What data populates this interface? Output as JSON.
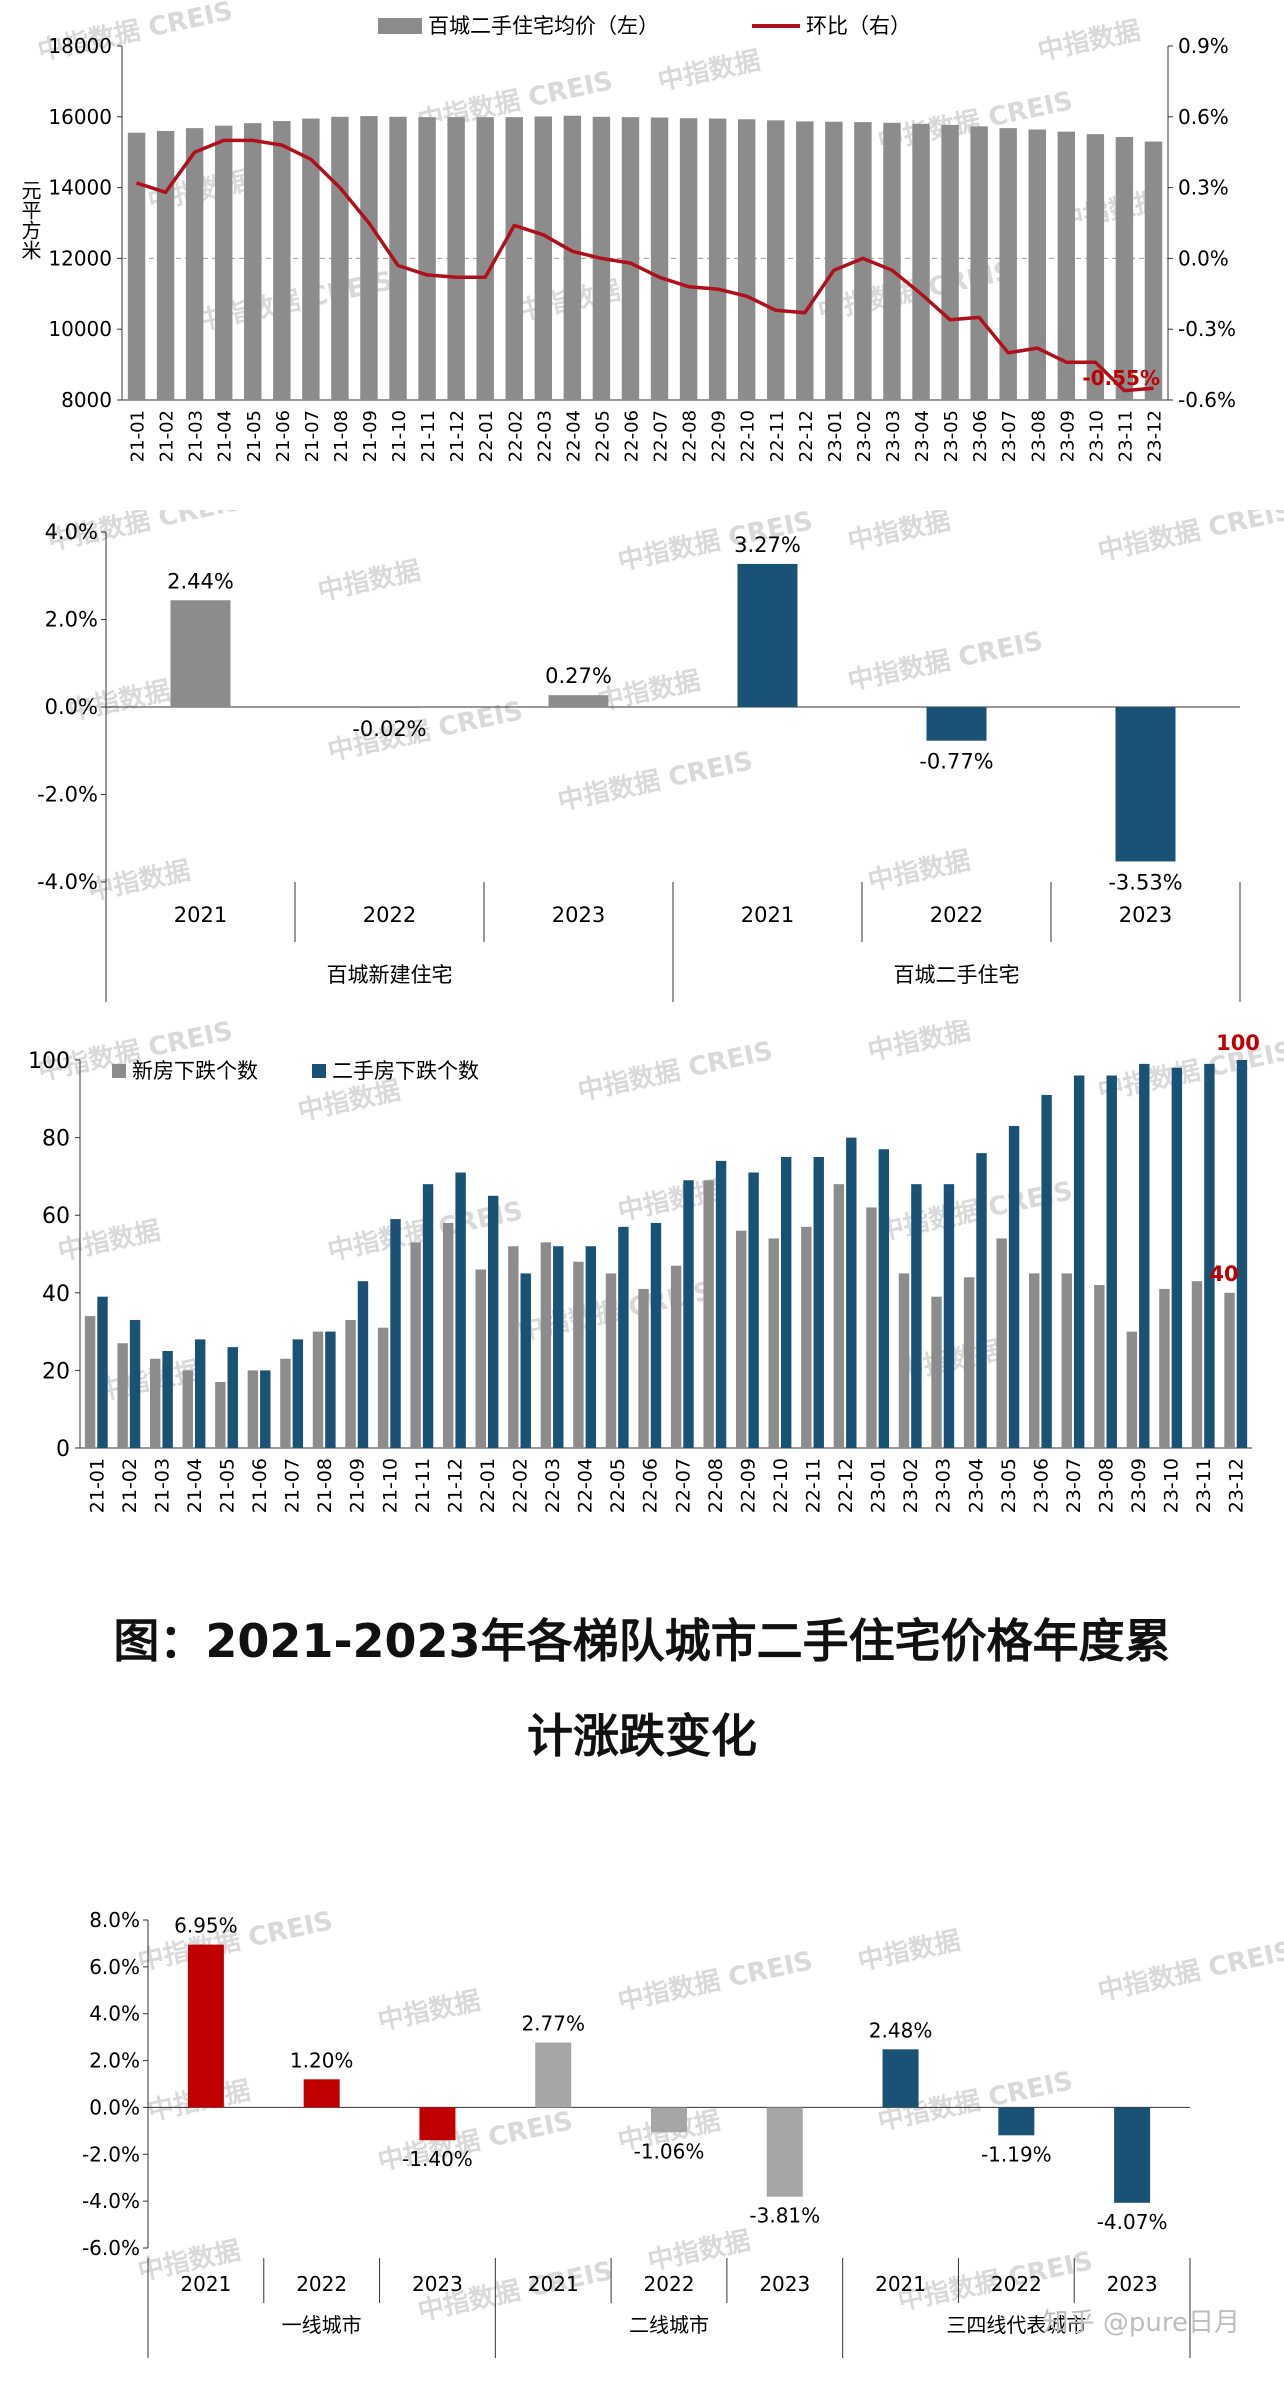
{
  "chart_data": [
    {
      "type": "bar",
      "legend": [
        "百城二手住宅均价（左）",
        "环比（右）"
      ],
      "ylabel": "元/平方米",
      "ylim": [
        8000,
        18000
      ],
      "y2lim": [
        -0.6,
        0.9
      ],
      "yticks": [
        "8000",
        "10000",
        "12000",
        "14000",
        "16000",
        "18000"
      ],
      "y2ticks": [
        "0.9%",
        "0.6%",
        "0.3%",
        "0.0%",
        "-0.3%",
        "-0.6%"
      ],
      "categories": [
        "21-01",
        "21-02",
        "21-03",
        "21-04",
        "21-05",
        "21-06",
        "21-07",
        "21-08",
        "21-09",
        "21-10",
        "21-11",
        "21-12",
        "22-01",
        "22-02",
        "22-03",
        "22-04",
        "22-05",
        "22-06",
        "22-07",
        "22-08",
        "22-09",
        "22-10",
        "22-11",
        "22-12",
        "23-01",
        "23-02",
        "23-03",
        "23-04",
        "23-05",
        "23-06",
        "23-07",
        "23-08",
        "23-09",
        "23-10",
        "23-11",
        "23-12"
      ],
      "series": [
        {
          "name": "百城二手住宅均价（左）",
          "axis": "left",
          "values": [
            15550,
            15600,
            15680,
            15750,
            15820,
            15880,
            15950,
            16000,
            16020,
            16000,
            15990,
            15990,
            15990,
            15990,
            16010,
            16030,
            16000,
            15990,
            15980,
            15960,
            15950,
            15930,
            15900,
            15870,
            15860,
            15850,
            15830,
            15800,
            15770,
            15730,
            15680,
            15640,
            15580,
            15510,
            15430,
            15300
          ]
        },
        {
          "name": "环比（右）",
          "axis": "right",
          "values": [
            0.32,
            0.28,
            0.45,
            0.5,
            0.5,
            0.48,
            0.42,
            0.3,
            0.15,
            -0.03,
            -0.07,
            -0.08,
            -0.08,
            0.14,
            0.1,
            0.03,
            0.0,
            -0.02,
            -0.08,
            -0.12,
            -0.13,
            -0.16,
            -0.22,
            -0.23,
            -0.05,
            0.0,
            -0.05,
            -0.15,
            -0.26,
            -0.25,
            -0.4,
            -0.38,
            -0.44,
            -0.44,
            -0.56,
            -0.55
          ]
        }
      ],
      "annotation": "-0.55%",
      "colors": {
        "bar": "#8c8c8c",
        "line": "#b0101b",
        "annotation": "#c00000"
      }
    },
    {
      "type": "bar",
      "ylim": [
        -4.0,
        4.0
      ],
      "yticks": [
        "4.0%",
        "2.0%",
        "0.0%",
        "-2.0%",
        "-4.0%"
      ],
      "groups": [
        "百城新建住宅",
        "百城二手住宅"
      ],
      "categories": [
        "2021",
        "2022",
        "2023",
        "2021",
        "2022",
        "2023"
      ],
      "values": [
        2.44,
        -0.02,
        0.27,
        3.27,
        -0.77,
        -3.53
      ],
      "labels": [
        "2.44%",
        "-0.02%",
        "0.27%",
        "3.27%",
        "-0.77%",
        "-3.53%"
      ],
      "colors": {
        "new": "#8c8c8c",
        "second": "#1a5276"
      }
    },
    {
      "type": "bar",
      "legend": [
        "新房下跌个数",
        "二手房下跌个数"
      ],
      "ylim": [
        0,
        100
      ],
      "yticks": [
        "0",
        "20",
        "40",
        "60",
        "80",
        "100"
      ],
      "categories": [
        "21-01",
        "21-02",
        "21-03",
        "21-04",
        "21-05",
        "21-06",
        "21-07",
        "21-08",
        "21-09",
        "21-10",
        "21-11",
        "21-12",
        "22-01",
        "22-02",
        "22-03",
        "22-04",
        "22-05",
        "22-06",
        "22-07",
        "22-08",
        "22-09",
        "22-10",
        "22-11",
        "22-12",
        "23-01",
        "23-02",
        "23-03",
        "23-04",
        "23-05",
        "23-06",
        "23-07",
        "23-08",
        "23-09",
        "23-10",
        "23-11",
        "23-12"
      ],
      "series": [
        {
          "name": "新房下跌个数",
          "values": [
            34,
            27,
            23,
            20,
            17,
            20,
            23,
            30,
            33,
            31,
            53,
            58,
            46,
            52,
            53,
            48,
            45,
            41,
            47,
            69,
            56,
            54,
            57,
            68,
            62,
            45,
            39,
            44,
            54,
            45,
            45,
            42,
            30,
            41,
            43,
            40
          ]
        },
        {
          "name": "二手房下跌个数",
          "values": [
            39,
            33,
            25,
            28,
            26,
            20,
            28,
            30,
            43,
            59,
            68,
            71,
            65,
            45,
            52,
            52,
            57,
            58,
            69,
            74,
            71,
            75,
            75,
            80,
            77,
            68,
            68,
            76,
            83,
            91,
            96,
            96,
            99,
            98,
            99,
            100
          ]
        }
      ],
      "end_labels": [
        "100",
        "40"
      ],
      "colors": {
        "new": "#8c8c8c",
        "second": "#1a5276",
        "label": "#c00000"
      }
    },
    {
      "type": "bar",
      "title": "图：2021-2023年各梯队城市二手住宅价格年度累计涨跌变化",
      "ylim": [
        -6.0,
        8.0
      ],
      "yticks": [
        "8.0%",
        "6.0%",
        "4.0%",
        "2.0%",
        "0.0%",
        "-2.0%",
        "-4.0%",
        "-6.0%"
      ],
      "groups": [
        "一线城市",
        "二线城市",
        "三四线代表城市"
      ],
      "categories": [
        "2021",
        "2022",
        "2023",
        "2021",
        "2022",
        "2023",
        "2021",
        "2022",
        "2023"
      ],
      "values": [
        6.95,
        1.2,
        -1.4,
        2.77,
        -1.06,
        -3.81,
        2.48,
        -1.19,
        -4.07
      ],
      "labels": [
        "6.95%",
        "1.20%",
        "-1.40%",
        "2.77%",
        "-1.06%",
        "-3.81%",
        "2.48%",
        "-1.19%",
        "-4.07%"
      ],
      "colors": {
        "tier1": "#c00000",
        "tier2": "#a6a6a6",
        "tier3": "#1a5276"
      }
    }
  ],
  "caption": {
    "line1": "图：2021-2023年各梯队城市二手住宅价格年度累计涨跌变化",
    "line2": "计涨跌变化"
  },
  "watermarks": [
    "中指数据 CREIS",
    "中指数据"
  ],
  "credit": "知乎 @pure日月"
}
